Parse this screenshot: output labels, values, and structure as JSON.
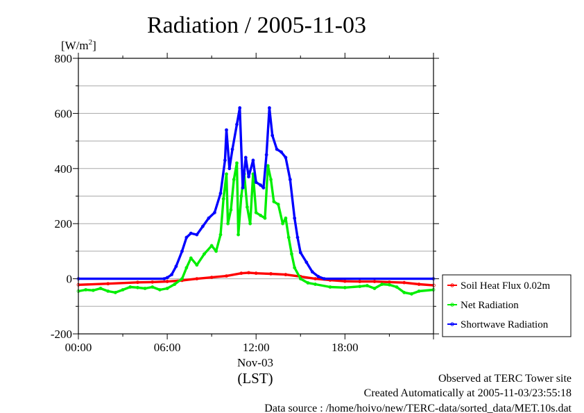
{
  "chart_data": {
    "type": "line",
    "title": "Radiation / 2005-11-03",
    "y_unit": "[W/m",
    "y_unit_sup": "2",
    "y_unit_close": "]",
    "ylim": [
      -200,
      800
    ],
    "yticks": [
      -200,
      0,
      200,
      400,
      600,
      800
    ],
    "ygrid_minor_step": 100,
    "xlim": [
      0,
      23.98
    ],
    "xticks": [
      {
        "x": 0,
        "label": "00:00"
      },
      {
        "x": 6,
        "label": "06:00"
      },
      {
        "x": 12,
        "label": "12:00"
      },
      {
        "x": 18,
        "label": "18:00"
      }
    ],
    "x_date_label": "Nov-03",
    "xlabel": "(LST)",
    "grid": true,
    "legend_position": "right",
    "series": [
      {
        "name": "Soil Heat Flux 0.02m",
        "color": "#ff0000",
        "points": [
          [
            0,
            -22
          ],
          [
            2,
            -18
          ],
          [
            4,
            -13
          ],
          [
            5,
            -12
          ],
          [
            6,
            -10
          ],
          [
            7,
            -6
          ],
          [
            8,
            0
          ],
          [
            9,
            5
          ],
          [
            10,
            10
          ],
          [
            11,
            20
          ],
          [
            11.5,
            22
          ],
          [
            12,
            20
          ],
          [
            13,
            18
          ],
          [
            14,
            15
          ],
          [
            15,
            8
          ],
          [
            16,
            0
          ],
          [
            17,
            -5
          ],
          [
            18,
            -9
          ],
          [
            19,
            -10
          ],
          [
            20,
            -10
          ],
          [
            21,
            -12
          ],
          [
            22,
            -14
          ],
          [
            23,
            -20
          ],
          [
            24,
            -24
          ]
        ]
      },
      {
        "name": "Net Radiation",
        "color": "#00ee00",
        "points": [
          [
            0,
            -45
          ],
          [
            0.5,
            -40
          ],
          [
            1,
            -42
          ],
          [
            1.5,
            -35
          ],
          [
            2,
            -45
          ],
          [
            2.5,
            -50
          ],
          [
            3,
            -40
          ],
          [
            3.5,
            -30
          ],
          [
            4,
            -32
          ],
          [
            4.5,
            -35
          ],
          [
            5,
            -30
          ],
          [
            5.5,
            -40
          ],
          [
            6,
            -35
          ],
          [
            6.5,
            -20
          ],
          [
            7,
            0
          ],
          [
            7.3,
            40
          ],
          [
            7.6,
            75
          ],
          [
            8,
            50
          ],
          [
            8.5,
            90
          ],
          [
            9,
            120
          ],
          [
            9.3,
            100
          ],
          [
            9.6,
            160
          ],
          [
            9.8,
            290
          ],
          [
            10,
            380
          ],
          [
            10.1,
            200
          ],
          [
            10.3,
            250
          ],
          [
            10.5,
            360
          ],
          [
            10.7,
            420
          ],
          [
            10.8,
            160
          ],
          [
            11,
            300
          ],
          [
            11.2,
            380
          ],
          [
            11.4,
            260
          ],
          [
            11.6,
            200
          ],
          [
            11.8,
            380
          ],
          [
            12,
            240
          ],
          [
            12.3,
            230
          ],
          [
            12.6,
            220
          ],
          [
            12.8,
            410
          ],
          [
            13,
            360
          ],
          [
            13.2,
            280
          ],
          [
            13.5,
            270
          ],
          [
            13.8,
            200
          ],
          [
            14,
            220
          ],
          [
            14.2,
            150
          ],
          [
            14.4,
            90
          ],
          [
            14.6,
            40
          ],
          [
            15,
            0
          ],
          [
            15.5,
            -15
          ],
          [
            16,
            -20
          ],
          [
            17,
            -30
          ],
          [
            18,
            -32
          ],
          [
            19,
            -28
          ],
          [
            19.5,
            -25
          ],
          [
            20,
            -35
          ],
          [
            20.5,
            -20
          ],
          [
            21,
            -22
          ],
          [
            21.5,
            -30
          ],
          [
            22,
            -50
          ],
          [
            22.5,
            -55
          ],
          [
            23,
            -45
          ],
          [
            23.98,
            -40
          ]
        ]
      },
      {
        "name": "Shortwave Radiation",
        "color": "#0000ff",
        "points": [
          [
            0,
            0
          ],
          [
            5.8,
            0
          ],
          [
            6,
            4
          ],
          [
            6.3,
            15
          ],
          [
            6.6,
            45
          ],
          [
            7,
            100
          ],
          [
            7.3,
            150
          ],
          [
            7.6,
            165
          ],
          [
            8,
            160
          ],
          [
            8.4,
            190
          ],
          [
            8.8,
            220
          ],
          [
            9.2,
            240
          ],
          [
            9.6,
            310
          ],
          [
            9.9,
            430
          ],
          [
            10,
            540
          ],
          [
            10.2,
            400
          ],
          [
            10.4,
            470
          ],
          [
            10.7,
            560
          ],
          [
            10.9,
            620
          ],
          [
            11.1,
            330
          ],
          [
            11.3,
            440
          ],
          [
            11.5,
            370
          ],
          [
            11.8,
            430
          ],
          [
            12,
            350
          ],
          [
            12.3,
            340
          ],
          [
            12.5,
            330
          ],
          [
            12.7,
            450
          ],
          [
            12.9,
            620
          ],
          [
            13.1,
            520
          ],
          [
            13.4,
            470
          ],
          [
            13.7,
            460
          ],
          [
            14,
            440
          ],
          [
            14.3,
            360
          ],
          [
            14.6,
            220
          ],
          [
            14.8,
            150
          ],
          [
            15,
            95
          ],
          [
            15.4,
            60
          ],
          [
            15.8,
            25
          ],
          [
            16.2,
            8
          ],
          [
            16.6,
            0
          ],
          [
            23.98,
            0
          ]
        ]
      }
    ]
  },
  "footer": {
    "site": "Observed at TERC Tower site",
    "created": "Created Automatically at 2005-11-03/23:55:18",
    "source": "Data source : /home/hoivo/new/TERC-data/sorted_data/MET.10s.dat"
  }
}
